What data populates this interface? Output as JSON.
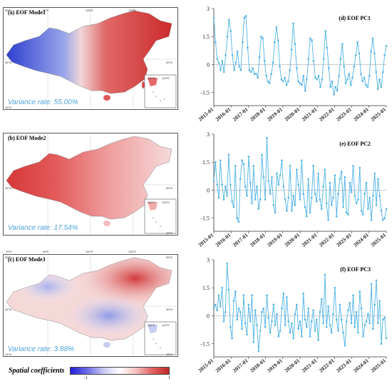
{
  "maps": [
    {
      "title": "(a) EOF Mode1",
      "variance": "Variance rate: 55.00%",
      "lat_top": "55°N",
      "lat_mid": "35°N",
      "lat_bot": "15°N",
      "lon1": "75°E",
      "lon2": "95°E",
      "lon3": "115°E",
      "lon4": "135°E",
      "inset_lon1": "110°E",
      "inset_lon2": "120°E"
    },
    {
      "title": "(b) EOF Mode2",
      "variance": "Variance rate: 17.54%",
      "lat_top": "",
      "lat_mid": "35°N",
      "lat_bot": "15°N",
      "lon1": "",
      "lon2": "",
      "lon3": "",
      "lon4": "",
      "inset_lon1": "110°E",
      "inset_lon2": "120°E"
    },
    {
      "title": "(c) EOF Mode3",
      "variance": "Variance rate: 3.88%",
      "lat_top": "55°N",
      "lat_mid": "35°N",
      "lat_bot": "15°N",
      "lon1": "75°E",
      "lon2": "95°E",
      "lon3": "115°E",
      "lon4": "135°E",
      "inset_lon1": "110°E",
      "inset_lon2": "120°E"
    }
  ],
  "colorbar": {
    "label": "Spatial coefficients",
    "min_label": "-1",
    "max_label": "1",
    "colors": [
      "#1f1fd6",
      "#ffffff",
      "#c0282a"
    ]
  },
  "chart_data": [
    {
      "type": "line",
      "title": "(d) EOF PC1",
      "x_labels": [
        "2015-01",
        "2016-01",
        "2017-01",
        "2018-01",
        "2019-01",
        "2020-01",
        "2021-01",
        "2022-01",
        "2023-01",
        "2024-01",
        "2025-01"
      ],
      "y_ticks": [
        "3",
        "1.5",
        "0",
        "-1.5"
      ],
      "ylim": [
        -2.2,
        3
      ],
      "color": "#4fb3e6",
      "values": [
        2.5,
        1.2,
        0.3,
        0.1,
        -0.3,
        0.2,
        -0.4,
        0.5,
        1.5,
        2.4,
        1.8,
        0.5,
        -0.3,
        0.1,
        0.7,
        -0.1,
        -0.3,
        1.2,
        2.5,
        2.6,
        0.9,
        -0.3,
        -0.4,
        -0.2,
        -0.5,
        -0.5,
        -0.7,
        0.4,
        1.5,
        1.4,
        0.2,
        -0.6,
        -0.9,
        -1.0,
        -0.5,
        0.1,
        1.2,
        2.0,
        1.3,
        -0.1,
        -0.8,
        -0.9,
        -0.7,
        -1.1,
        -0.9,
        -0.3,
        0.8,
        2.2,
        1.1,
        -0.2,
        -0.9,
        -1.0,
        -1.1,
        -0.6,
        -1.4,
        -0.8,
        0.3,
        1.4,
        1.3,
        0.2,
        -0.7,
        -0.8,
        -0.6,
        -1.2,
        -0.8,
        0.3,
        1.8,
        0.9,
        -0.2,
        -1.2,
        -0.9,
        -1.6,
        -1.2,
        -1.4,
        -0.6,
        0.3,
        1.1,
        -0.1,
        -1.0,
        -0.8,
        -0.5,
        -1.1,
        -0.7,
        -0.1,
        0.5,
        1.2,
        0.6,
        -0.5,
        -0.9,
        -0.7,
        -1.1,
        -1.2,
        -0.6,
        0.7,
        1.4,
        0.6,
        -0.4,
        -1.3,
        -0.8,
        -1.2,
        -0.4,
        0.5,
        1.0
      ]
    },
    {
      "type": "line",
      "title": "(e) EOF PC2",
      "x_labels": [
        "2015-01",
        "2016-01",
        "2017-01",
        "2018-01",
        "2019-01",
        "2020-01",
        "2021-01",
        "2022-01",
        "2023-01",
        "2024-01",
        "2025-01"
      ],
      "y_ticks": [
        "3",
        "1.5",
        "0",
        "-1.5"
      ],
      "ylim": [
        -2.2,
        3
      ],
      "color": "#4fb3e6",
      "values": [
        0.5,
        1.5,
        0.3,
        -0.4,
        1.6,
        0.3,
        -0.5,
        0.2,
        -0.3,
        1.9,
        0.3,
        -0.6,
        -0.9,
        1.3,
        -1.5,
        -1.7,
        0.6,
        1.6,
        1.4,
        0.2,
        -0.3,
        1.8,
        0.4,
        -0.7,
        1.3,
        -0.5,
        0.2,
        -1.0,
        -0.5,
        1.9,
        0.7,
        -0.5,
        2.8,
        0.5,
        -0.2,
        0.7,
        -0.8,
        -1.2,
        0.9,
        0.3,
        0.8,
        1.6,
        0.2,
        -0.5,
        -1.1,
        -0.4,
        1.3,
        -1.1,
        -0.3,
        -0.8,
        1.1,
        0.3,
        -0.5,
        1.6,
        -0.2,
        -0.9,
        -1.4,
        0.6,
        -1.2,
        -0.4,
        1.3,
        -0.2,
        -0.6,
        0.9,
        -0.5,
        -1.0,
        0.2,
        1.1,
        -0.7,
        -1.6,
        0.4,
        -0.8,
        -0.4,
        0.8,
        -1.4,
        -0.2,
        0.6,
        1.0,
        -0.9,
        0.7,
        -1.2,
        -1.3,
        0.4,
        -0.1,
        1.3,
        -0.3,
        -0.7,
        -0.5,
        1.2,
        -1.1,
        -1.3,
        -0.2,
        0.4,
        -1.0,
        -0.4,
        -1.6,
        -0.3,
        0.9,
        -0.8,
        0.6,
        -0.3,
        -1.1,
        -1.6,
        -1.5,
        -1.0
      ]
    },
    {
      "type": "line",
      "title": "(f) EOF PC3",
      "x_labels": [
        "2015-01",
        "2016-01",
        "2017-01",
        "2018-01",
        "2019-01",
        "2020-01",
        "2021-01",
        "2022-01",
        "2023-01",
        "2024-01",
        "2025-01"
      ],
      "y_ticks": [
        "3",
        "1.5",
        "0",
        "-1.5"
      ],
      "ylim": [
        -2.2,
        3
      ],
      "color": "#4fb3e6",
      "values": [
        0.4,
        0.6,
        0.3,
        1.1,
        0.5,
        1.5,
        -0.3,
        0.2,
        2.8,
        1.4,
        -0.6,
        -1.2,
        0.8,
        1.3,
        -0.2,
        0.4,
        0.2,
        -0.7,
        1.1,
        -0.4,
        -1.0,
        0.6,
        -0.3,
        1.1,
        -1.4,
        0.3,
        -0.5,
        -1.9,
        -0.8,
        0.2,
        0.4,
        -0.6,
        1.1,
        -0.1,
        -0.9,
        -0.3,
        0.6,
        -0.5,
        0.1,
        -1.1,
        -0.8,
        0.4,
        1.2,
        -0.5,
        1.0,
        -0.3,
        -0.9,
        -0.4,
        -1.2,
        0.1,
        0.6,
        -0.7,
        -0.3,
        -1.1,
        1.2,
        -0.2,
        -0.6,
        0.4,
        -1.1,
        -0.3,
        0.3,
        -0.8,
        -0.2,
        -1.3,
        0.2,
        0.9,
        -0.4,
        2.2,
        -0.6,
        0.5,
        -0.5,
        -0.9,
        0.1,
        1.5,
        -0.2,
        -0.8,
        0.6,
        -0.2,
        -0.9,
        -1.6,
        -0.3,
        0.3,
        0.7,
        -0.4,
        1.1,
        -0.6,
        0.2,
        -0.9,
        1.3,
        0.4,
        -1.1,
        -0.5,
        -0.3,
        0.1,
        -0.4,
        1.7,
        -0.7,
        0.6,
        1.9,
        -0.4,
        0.8,
        -1.5,
        -0.2,
        -0.1,
        -1.2
      ]
    }
  ]
}
